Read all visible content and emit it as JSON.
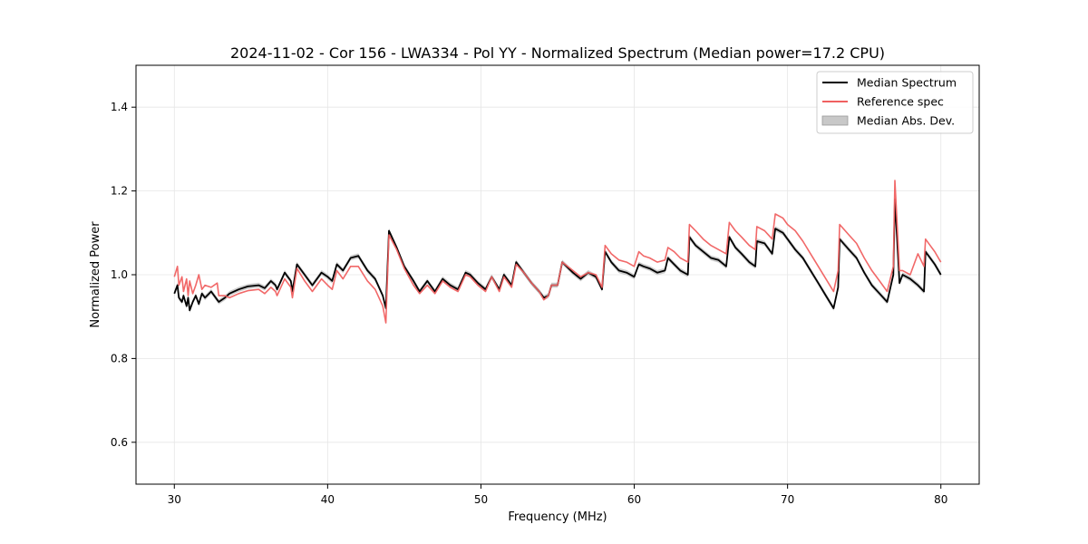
{
  "chart_data": {
    "type": "line",
    "title": "2024-11-02 - Cor 156 - LWA334 - Pol YY - Normalized Spectrum (Median power=17.2 CPU)",
    "xlabel": "Frequency (MHz)",
    "ylabel": "Normalized Power",
    "xlim": [
      27.5,
      82.5
    ],
    "ylim": [
      0.5,
      1.5
    ],
    "xticks": [
      30,
      40,
      50,
      60,
      70,
      80
    ],
    "xtick_labels": [
      "30",
      "40",
      "50",
      "60",
      "70",
      "80"
    ],
    "yticks": [
      0.6,
      0.8,
      1.0,
      1.2,
      1.4
    ],
    "ytick_labels": [
      "0.6",
      "0.8",
      "1.0",
      "1.2",
      "1.4"
    ],
    "grid": true,
    "legend_position": "top-right",
    "legend": [
      {
        "label": "Median Spectrum",
        "kind": "line",
        "color": "#000000"
      },
      {
        "label": "Reference spec",
        "kind": "line",
        "color": "#f06060"
      },
      {
        "label": "Median Abs. Dev.",
        "kind": "patch",
        "color": "#c8c8c8"
      }
    ],
    "mad_halfwidth": 0.006,
    "series": [
      {
        "name": "Median Spectrum",
        "color": "#000000",
        "x": [
          30.0,
          30.2,
          30.3,
          30.5,
          30.6,
          30.8,
          30.9,
          31.0,
          31.2,
          31.4,
          31.6,
          31.8,
          32.0,
          32.4,
          32.8,
          32.9,
          33.3,
          33.6,
          34.2,
          34.8,
          35.5,
          35.9,
          36.3,
          36.6,
          36.7,
          37.2,
          37.6,
          37.7,
          38.0,
          38.5,
          39.0,
          39.6,
          40.0,
          40.3,
          40.6,
          41.0,
          41.5,
          42.0,
          42.6,
          43.1,
          43.6,
          43.8,
          44.0,
          44.5,
          45.0,
          45.6,
          46.0,
          46.5,
          47.0,
          47.5,
          48.0,
          48.5,
          49.0,
          49.3,
          49.8,
          50.3,
          50.7,
          51.2,
          51.5,
          52.0,
          52.3,
          52.8,
          53.3,
          53.8,
          54.1,
          54.4,
          54.6,
          55.0,
          55.3,
          56.0,
          56.5,
          57.0,
          57.5,
          57.9,
          58.1,
          58.5,
          59.0,
          59.5,
          60.0,
          60.3,
          60.6,
          61.0,
          61.5,
          62.0,
          62.2,
          62.6,
          63.0,
          63.5,
          63.6,
          64.0,
          64.5,
          65.0,
          65.5,
          66.0,
          66.2,
          66.6,
          67.0,
          67.5,
          67.9,
          68.0,
          68.5,
          69.0,
          69.2,
          69.7,
          70.0,
          70.5,
          71.0,
          71.5,
          72.0,
          72.5,
          73.0,
          73.3,
          73.4,
          74.0,
          74.5,
          75.0,
          75.5,
          76.0,
          76.5,
          76.9,
          77.0,
          77.3,
          77.5,
          78.0,
          78.5,
          78.9,
          79.0,
          79.3,
          79.6,
          80.0
        ],
        "y": [
          0.955,
          0.975,
          0.945,
          0.935,
          0.95,
          0.925,
          0.945,
          0.915,
          0.935,
          0.95,
          0.93,
          0.955,
          0.945,
          0.96,
          0.94,
          0.935,
          0.945,
          0.955,
          0.965,
          0.972,
          0.975,
          0.968,
          0.985,
          0.975,
          0.965,
          1.005,
          0.985,
          0.96,
          1.025,
          1.0,
          0.975,
          1.005,
          0.995,
          0.985,
          1.025,
          1.01,
          1.04,
          1.045,
          1.01,
          0.99,
          0.95,
          0.92,
          1.105,
          1.065,
          1.02,
          0.985,
          0.96,
          0.985,
          0.96,
          0.99,
          0.975,
          0.965,
          1.005,
          1.0,
          0.98,
          0.965,
          0.995,
          0.965,
          1.0,
          0.975,
          1.03,
          1.005,
          0.98,
          0.96,
          0.945,
          0.95,
          0.975,
          0.975,
          1.03,
          1.005,
          0.99,
          1.005,
          0.995,
          0.965,
          1.055,
          1.03,
          1.01,
          1.005,
          0.995,
          1.025,
          1.02,
          1.015,
          1.005,
          1.01,
          1.04,
          1.025,
          1.01,
          1.0,
          1.09,
          1.07,
          1.055,
          1.04,
          1.035,
          1.02,
          1.09,
          1.065,
          1.05,
          1.03,
          1.02,
          1.08,
          1.075,
          1.05,
          1.11,
          1.1,
          1.085,
          1.06,
          1.04,
          1.01,
          0.98,
          0.95,
          0.92,
          0.97,
          1.085,
          1.06,
          1.04,
          1.005,
          0.975,
          0.955,
          0.935,
          1.0,
          1.18,
          0.98,
          1.0,
          0.99,
          0.975,
          0.96,
          1.055,
          1.04,
          1.025,
          1.0
        ]
      },
      {
        "name": "Reference spec",
        "color": "#f06060",
        "x": [
          30.0,
          30.2,
          30.3,
          30.5,
          30.6,
          30.8,
          30.9,
          31.0,
          31.2,
          31.4,
          31.6,
          31.8,
          32.0,
          32.4,
          32.8,
          32.9,
          33.3,
          33.6,
          34.2,
          34.8,
          35.5,
          35.9,
          36.3,
          36.6,
          36.7,
          37.2,
          37.6,
          37.7,
          38.0,
          38.5,
          39.0,
          39.6,
          40.0,
          40.3,
          40.6,
          41.0,
          41.5,
          42.0,
          42.6,
          43.1,
          43.6,
          43.8,
          44.0,
          44.5,
          45.0,
          45.6,
          46.0,
          46.5,
          47.0,
          47.5,
          48.0,
          48.5,
          49.0,
          49.3,
          49.8,
          50.3,
          50.7,
          51.2,
          51.5,
          52.0,
          52.3,
          52.8,
          53.3,
          53.8,
          54.1,
          54.4,
          54.6,
          55.0,
          55.3,
          56.0,
          56.5,
          57.0,
          57.5,
          57.9,
          58.1,
          58.5,
          59.0,
          59.5,
          60.0,
          60.3,
          60.6,
          61.0,
          61.5,
          62.0,
          62.2,
          62.6,
          63.0,
          63.5,
          63.6,
          64.0,
          64.5,
          65.0,
          65.5,
          66.0,
          66.2,
          66.6,
          67.0,
          67.5,
          67.9,
          68.0,
          68.5,
          69.0,
          69.2,
          69.7,
          70.0,
          70.5,
          71.0,
          71.5,
          72.0,
          72.5,
          73.0,
          73.3,
          73.4,
          74.0,
          74.5,
          75.0,
          75.5,
          76.0,
          76.5,
          76.9,
          77.0,
          77.3,
          77.5,
          78.0,
          78.5,
          78.9,
          79.0,
          79.3,
          79.6,
          80.0
        ],
        "y": [
          0.995,
          1.02,
          0.975,
          0.995,
          0.96,
          0.99,
          0.95,
          0.985,
          0.955,
          0.975,
          1.0,
          0.965,
          0.975,
          0.97,
          0.98,
          0.95,
          0.95,
          0.945,
          0.955,
          0.962,
          0.965,
          0.955,
          0.97,
          0.96,
          0.95,
          0.99,
          0.97,
          0.945,
          1.015,
          0.985,
          0.96,
          0.99,
          0.975,
          0.965,
          1.01,
          0.99,
          1.02,
          1.02,
          0.985,
          0.965,
          0.925,
          0.885,
          1.095,
          1.06,
          1.015,
          0.975,
          0.955,
          0.975,
          0.955,
          0.985,
          0.97,
          0.96,
          1.0,
          0.995,
          0.975,
          0.96,
          0.995,
          0.96,
          0.995,
          0.97,
          1.025,
          1.005,
          0.98,
          0.96,
          0.94,
          0.95,
          0.975,
          0.975,
          1.03,
          1.01,
          0.995,
          1.005,
          1.0,
          0.97,
          1.07,
          1.05,
          1.035,
          1.03,
          1.02,
          1.055,
          1.045,
          1.04,
          1.03,
          1.035,
          1.065,
          1.055,
          1.04,
          1.03,
          1.12,
          1.105,
          1.085,
          1.07,
          1.06,
          1.05,
          1.125,
          1.105,
          1.09,
          1.07,
          1.06,
          1.115,
          1.105,
          1.085,
          1.145,
          1.135,
          1.12,
          1.105,
          1.08,
          1.05,
          1.02,
          0.99,
          0.96,
          1.01,
          1.12,
          1.095,
          1.075,
          1.04,
          1.01,
          0.985,
          0.96,
          1.02,
          1.225,
          1.01,
          1.01,
          1.0,
          1.05,
          1.02,
          1.085,
          1.07,
          1.055,
          1.03
        ]
      }
    ]
  }
}
